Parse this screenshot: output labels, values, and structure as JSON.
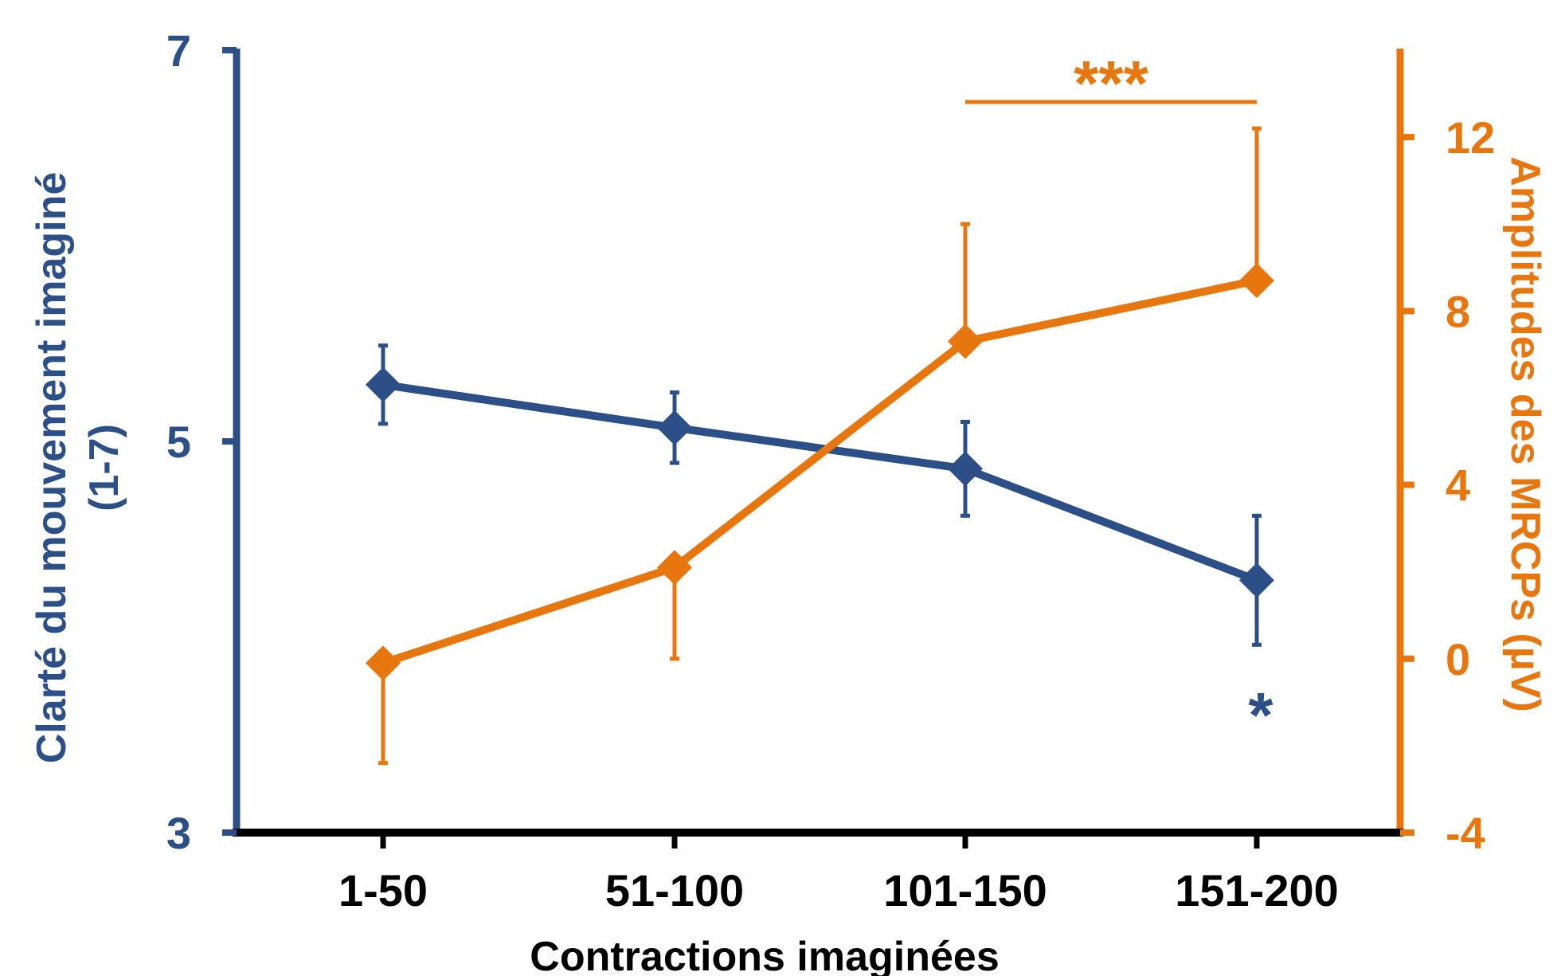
{
  "chart_data": {
    "type": "line",
    "categories": [
      "1-50",
      "51-100",
      "101-150",
      "151-200"
    ],
    "xlabel": "Contractions imaginées",
    "left_axis": {
      "label_line1": "Clarté du mouvement imaginé",
      "label_line2": "(1-7)",
      "ylim": [
        3,
        7
      ],
      "ticks": [
        "3",
        "5",
        "7"
      ],
      "color": "#2b4f86"
    },
    "right_axis": {
      "label": "Amplitudes des MRCPs (µV)",
      "ylim": [
        -4,
        14
      ],
      "ticks": [
        "-4",
        "0",
        "4",
        "8",
        "12"
      ],
      "color": "#e8760f"
    },
    "series": [
      {
        "axis": "left",
        "values": [
          5.29,
          5.07,
          4.86,
          4.29
        ],
        "err_low": [
          0.2,
          0.18,
          0.24,
          0.33
        ],
        "err_high": [
          0.2,
          0.18,
          0.24,
          0.33
        ],
        "color": "#2b4f86"
      },
      {
        "axis": "right",
        "values": [
          -0.1,
          2.1,
          7.3,
          8.7
        ],
        "err_low": [
          2.3,
          2.1,
          0,
          0
        ],
        "err_high": [
          0,
          0,
          2.7,
          3.5
        ],
        "color": "#e8760f"
      }
    ],
    "annotations": [
      {
        "text": "*",
        "color": "#2b4f86",
        "near": "151-200"
      },
      {
        "text": "***",
        "color": "#e8760f",
        "bracket": [
          "101-150",
          "151-200"
        ]
      }
    ],
    "grid": false,
    "legend": "none"
  }
}
